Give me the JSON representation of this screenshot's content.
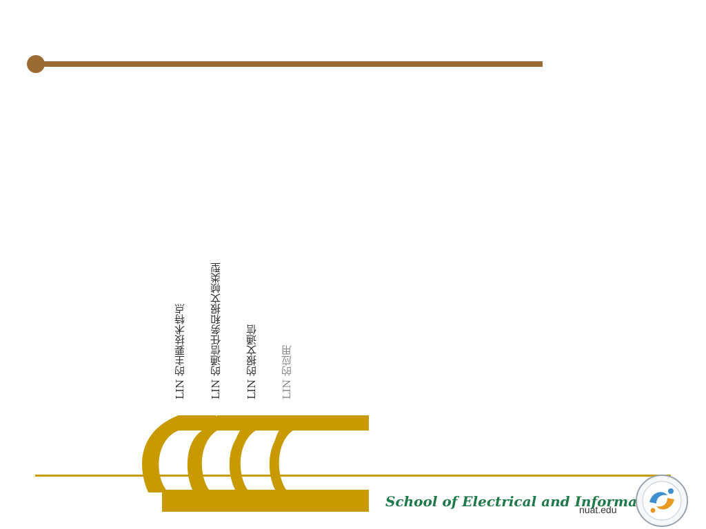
{
  "colors": {
    "accent": "#9a6b32",
    "gold": "#c99a00",
    "green": "#1f7a4a",
    "logo_blue": "#3d8fd0",
    "logo_orange": "#e89a20"
  },
  "menu": {
    "items": [
      {
        "label": "LIN 的主要技术特点"
      },
      {
        "label": "LIN 的通信任务和报文帧类型"
      },
      {
        "label": "LIN 的报文通信"
      },
      {
        "label": "LIN 的应用"
      }
    ]
  },
  "footer": {
    "school_name": "School of Electrical and Information",
    "domain": "nuat.edu"
  },
  "icons": {
    "top_bullet": "circle-bullet-icon",
    "tabs_graphic": "stacked-arches-icon",
    "logo": "school-emblem-icon"
  }
}
